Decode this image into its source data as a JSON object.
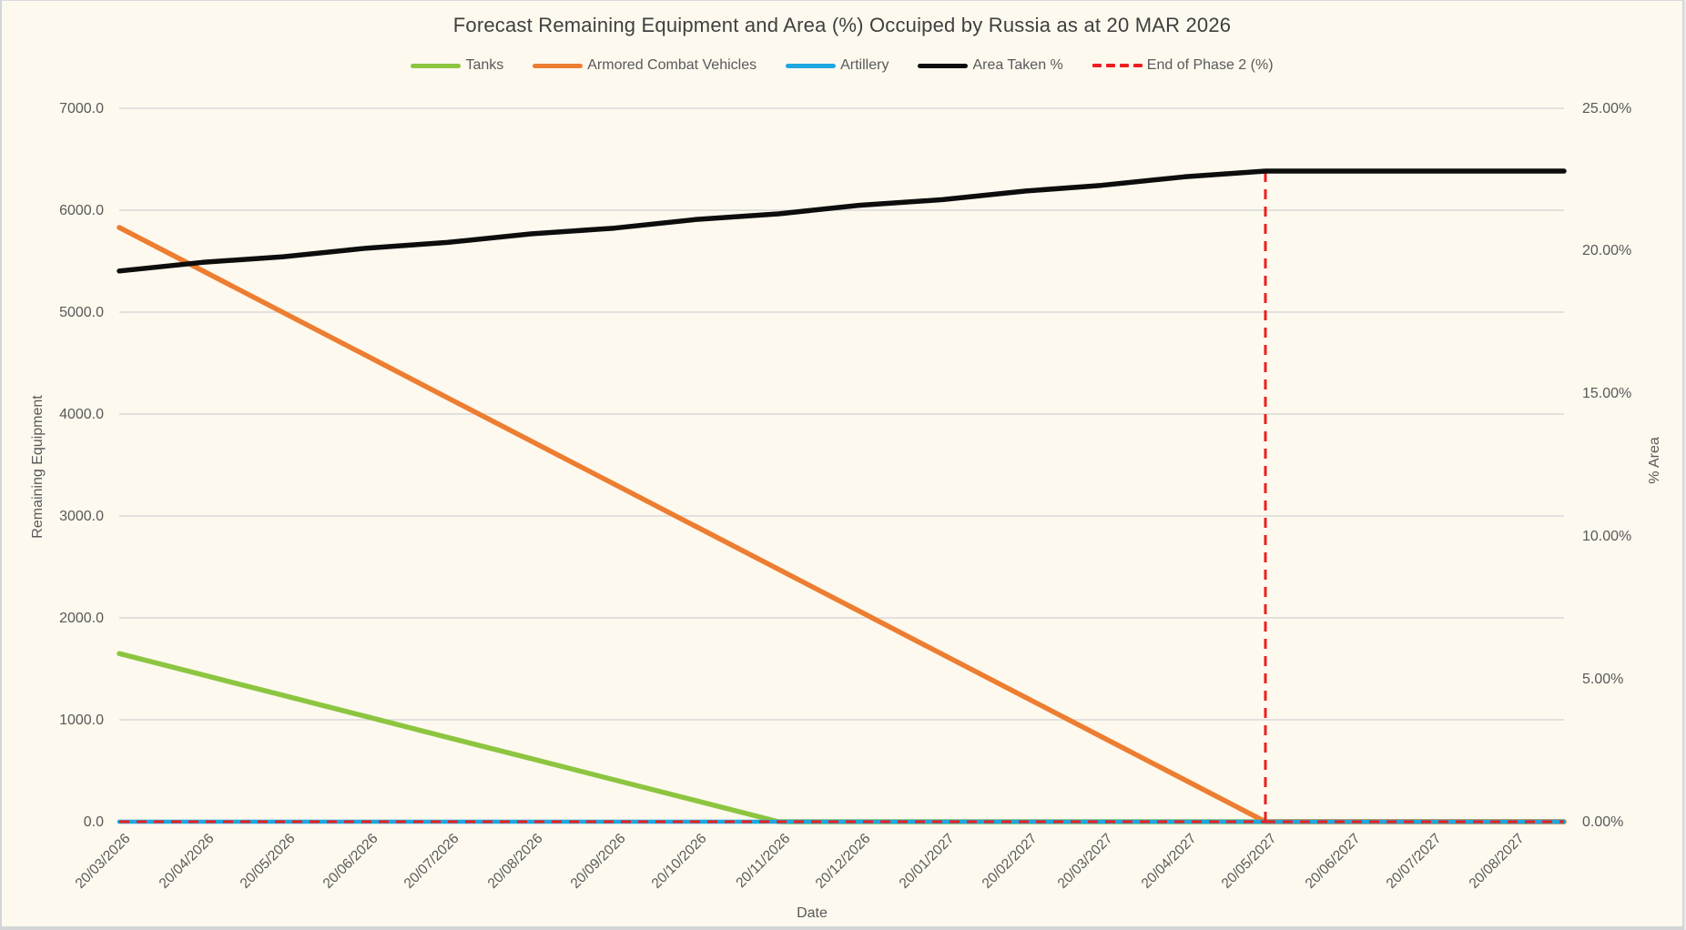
{
  "title": "Forecast Remaining Equipment and Area (%) Occuiped by Russia as at 20 MAR 2026",
  "legend": [
    {
      "label": "Tanks",
      "color": "#8cc540",
      "style": "solid"
    },
    {
      "label": "Armored Combat Vehicles",
      "color": "#ed7d31",
      "style": "solid"
    },
    {
      "label": "Artillery",
      "color": "#1ea7e1",
      "style": "solid"
    },
    {
      "label": "Area Taken %",
      "color": "#0d0d0d",
      "style": "solid"
    },
    {
      "label": "End of Phase 2 (%)",
      "color": "#ed1f1f",
      "style": "dashed"
    }
  ],
  "chart_data": {
    "type": "line",
    "title": "Forecast Remaining Equipment and Area (%) Occuiped by Russia as at 20 MAR 2026",
    "xlabel": "Date",
    "ylabel_left": "Remaining Equipment",
    "ylabel_right": "% Area",
    "grid": "horizontal",
    "colors": {
      "background": "#fdf9ee",
      "gridline": "#d9d9d9",
      "tick_text": "#595959",
      "title_text": "#3f3f3f"
    },
    "x_categories": [
      "20/03/2026",
      "20/04/2026",
      "20/05/2026",
      "20/06/2026",
      "20/07/2026",
      "20/08/2026",
      "20/09/2026",
      "20/10/2026",
      "20/11/2026",
      "20/12/2026",
      "20/01/2027",
      "20/02/2027",
      "20/03/2027",
      "20/04/2027",
      "20/05/2027",
      "20/06/2027",
      "20/07/2027",
      "20/08/2027"
    ],
    "x_days": [
      0,
      31,
      61,
      92,
      122,
      153,
      184,
      214,
      245,
      275,
      306,
      337,
      365,
      396,
      426,
      457,
      487,
      518
    ],
    "x_axis": {
      "start_day": 0,
      "end_day": 537
    },
    "ylim_left": [
      0,
      7000
    ],
    "ylim_right_pct": [
      0,
      25
    ],
    "ticks_left": [
      {
        "value": 7000,
        "label": "7000.0"
      },
      {
        "value": 6000,
        "label": "6000.0"
      },
      {
        "value": 5000,
        "label": "5000.0"
      },
      {
        "value": 4000,
        "label": "4000.0"
      },
      {
        "value": 3000,
        "label": "3000.0"
      },
      {
        "value": 2000,
        "label": "2000.0"
      },
      {
        "value": 1000,
        "label": "1000.0"
      },
      {
        "value": 0,
        "label": "0.0"
      }
    ],
    "ticks_right": [
      {
        "value": 25,
        "label": "25.00%"
      },
      {
        "value": 20,
        "label": "20.00%"
      },
      {
        "value": 15,
        "label": "15.00%"
      },
      {
        "value": 10,
        "label": "10.00%"
      },
      {
        "value": 5,
        "label": "5.00%"
      },
      {
        "value": 0,
        "label": "0.00%"
      }
    ],
    "series": [
      {
        "name": "Tanks",
        "axis": "left",
        "color": "#8cc540",
        "style": "solid",
        "width": 5.5,
        "values": [
          1650,
          1441,
          1239,
          1030,
          828,
          620,
          411,
          209,
          0,
          0,
          0,
          0,
          0,
          0,
          0,
          0,
          0,
          0
        ]
      },
      {
        "name": "Armored Combat Vehicles",
        "axis": "left",
        "color": "#ed7d31",
        "style": "solid",
        "width": 5.5,
        "values": [
          5830,
          5406,
          4995,
          4571,
          4160,
          3736,
          3312,
          2902,
          2477,
          2067,
          1642,
          1218,
          835,
          411,
          0,
          0,
          0,
          0
        ]
      },
      {
        "name": "Artillery",
        "axis": "left",
        "color": "#1ea7e1",
        "style": "solid",
        "width": 4.5,
        "values": [
          0,
          0,
          0,
          0,
          0,
          0,
          0,
          0,
          0,
          0,
          0,
          0,
          0,
          0,
          0,
          0,
          0,
          0
        ]
      },
      {
        "name": "Area Taken %",
        "axis": "right",
        "color": "#0d0d0d",
        "style": "solid",
        "width": 5.5,
        "values": [
          19.3,
          19.6,
          19.8,
          20.1,
          20.3,
          20.6,
          20.8,
          21.1,
          21.3,
          21.6,
          21.8,
          22.1,
          22.3,
          22.6,
          22.8,
          22.8,
          22.8,
          22.8
        ]
      },
      {
        "name": "End of Phase 2 (%)",
        "axis": "right",
        "color": "#ed1f1f",
        "style": "dashed",
        "width": 3,
        "values": [
          0,
          0,
          0,
          0,
          0,
          0,
          0,
          0,
          0,
          0,
          0,
          0,
          0,
          0,
          22.8,
          0,
          0,
          0
        ]
      }
    ],
    "end_of_phase2_event": {
      "date": "20/05/2027",
      "day": 426,
      "value_pct": 22.8
    },
    "notes": "Tanks reach 0 at 20/11/2026; Armored Combat Vehicles reach 0 at 20/05/2027; Area Taken rises 19.3% to 22.8% then flat; red dashed series spikes vertically at 20/05/2027."
  }
}
